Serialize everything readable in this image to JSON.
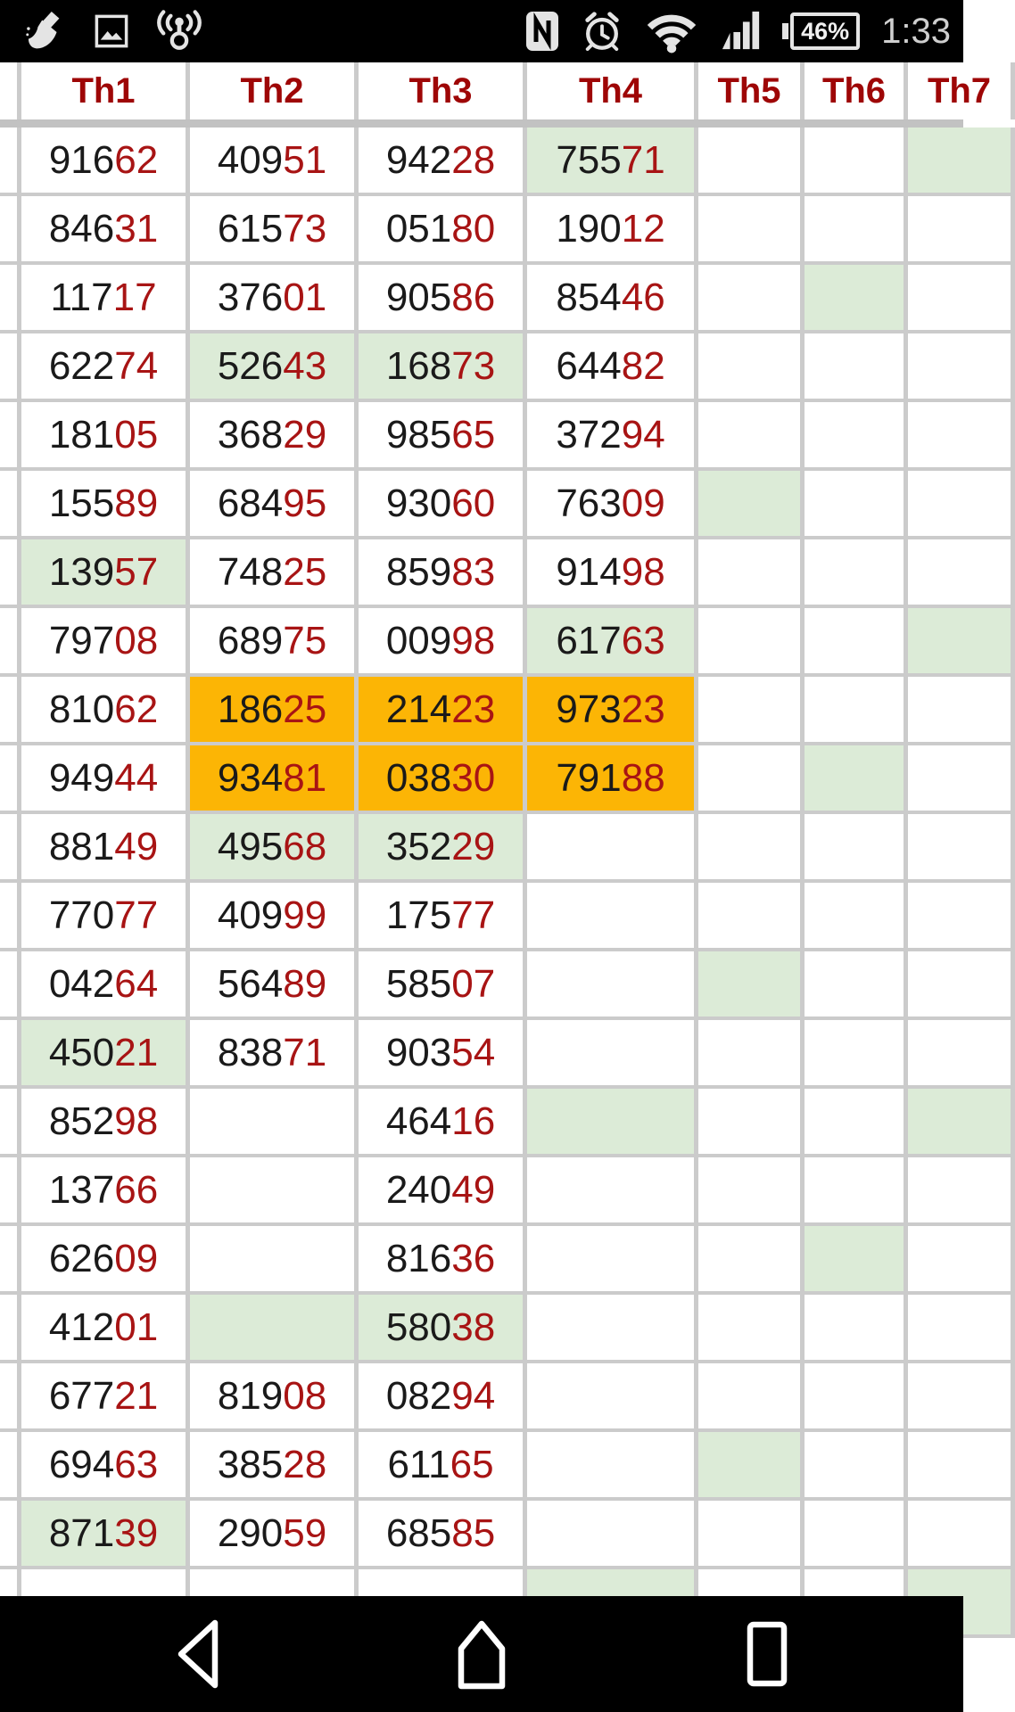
{
  "status_bar": {
    "battery_percent": "46%",
    "time": "1:33",
    "icons": [
      "broom-icon",
      "gallery-icon",
      "hotspot-icon",
      "nfc-icon",
      "alarm-clock-icon",
      "wifi-icon",
      "cell-signal-icon",
      "battery-icon"
    ]
  },
  "table": {
    "headers": [
      "Th1",
      "Th2",
      "Th3",
      "Th4",
      "Th5",
      "Th6",
      "Th7"
    ],
    "digit_colors": {
      "black_prefix_len": 3,
      "red_suffix_len": 2
    },
    "rows": [
      [
        {
          "v": "91662"
        },
        {
          "v": "40951"
        },
        {
          "v": "94228"
        },
        {
          "v": "75571",
          "bg": "green"
        },
        {},
        {},
        {
          "bg": "green"
        }
      ],
      [
        {
          "v": "84631"
        },
        {
          "v": "61573"
        },
        {
          "v": "05180"
        },
        {
          "v": "19012"
        },
        {},
        {},
        {}
      ],
      [
        {
          "v": "11717"
        },
        {
          "v": "37601"
        },
        {
          "v": "90586"
        },
        {
          "v": "85446"
        },
        {},
        {
          "bg": "green"
        },
        {}
      ],
      [
        {
          "v": "62274"
        },
        {
          "v": "52643",
          "bg": "green"
        },
        {
          "v": "16873",
          "bg": "green"
        },
        {
          "v": "64482"
        },
        {},
        {},
        {}
      ],
      [
        {
          "v": "18105"
        },
        {
          "v": "36829"
        },
        {
          "v": "98565"
        },
        {
          "v": "37294"
        },
        {},
        {},
        {}
      ],
      [
        {
          "v": "15589"
        },
        {
          "v": "68495"
        },
        {
          "v": "93060"
        },
        {
          "v": "76309"
        },
        {
          "bg": "green"
        },
        {},
        {}
      ],
      [
        {
          "v": "13957",
          "bg": "green"
        },
        {
          "v": "74825"
        },
        {
          "v": "85983"
        },
        {
          "v": "91498"
        },
        {},
        {},
        {}
      ],
      [
        {
          "v": "79708"
        },
        {
          "v": "68975"
        },
        {
          "v": "00998"
        },
        {
          "v": "61763",
          "bg": "green"
        },
        {},
        {},
        {
          "bg": "green"
        }
      ],
      [
        {
          "v": "81062"
        },
        {
          "v": "18625",
          "bg": "orange"
        },
        {
          "v": "21423",
          "bg": "orange"
        },
        {
          "v": "97323",
          "bg": "orange"
        },
        {},
        {},
        {}
      ],
      [
        {
          "v": "94944"
        },
        {
          "v": "93481",
          "bg": "orange"
        },
        {
          "v": "03830",
          "bg": "orange"
        },
        {
          "v": "79188",
          "bg": "orange"
        },
        {},
        {
          "bg": "green"
        },
        {}
      ],
      [
        {
          "v": "88149"
        },
        {
          "v": "49568",
          "bg": "green"
        },
        {
          "v": "35229",
          "bg": "green"
        },
        {},
        {},
        {},
        {}
      ],
      [
        {
          "v": "77077"
        },
        {
          "v": "40999"
        },
        {
          "v": "17577"
        },
        {},
        {},
        {},
        {}
      ],
      [
        {
          "v": "04264"
        },
        {
          "v": "56489"
        },
        {
          "v": "58507"
        },
        {},
        {
          "bg": "green"
        },
        {},
        {}
      ],
      [
        {
          "v": "45021",
          "bg": "green"
        },
        {
          "v": "83871"
        },
        {
          "v": "90354"
        },
        {},
        {},
        {},
        {}
      ],
      [
        {
          "v": "85298"
        },
        {},
        {
          "v": "46416"
        },
        {
          "bg": "green"
        },
        {},
        {},
        {
          "bg": "green"
        }
      ],
      [
        {
          "v": "13766"
        },
        {},
        {
          "v": "24049"
        },
        {},
        {},
        {},
        {}
      ],
      [
        {
          "v": "62609"
        },
        {},
        {
          "v": "81636"
        },
        {},
        {},
        {
          "bg": "green"
        },
        {}
      ],
      [
        {
          "v": "41201"
        },
        {
          "bg": "green"
        },
        {
          "v": "58038",
          "bg": "green"
        },
        {},
        {},
        {},
        {}
      ],
      [
        {
          "v": "67721"
        },
        {
          "v": "81908"
        },
        {
          "v": "08294"
        },
        {},
        {},
        {},
        {}
      ],
      [
        {
          "v": "69463"
        },
        {
          "v": "38528"
        },
        {
          "v": "61165"
        },
        {},
        {
          "bg": "green"
        },
        {},
        {}
      ],
      [
        {
          "v": "87139",
          "bg": "green"
        },
        {
          "v": "29059"
        },
        {
          "v": "68585"
        },
        {},
        {},
        {},
        {}
      ],
      [
        {},
        {},
        {},
        {
          "bg": "green"
        },
        {},
        {},
        {
          "bg": "green"
        }
      ]
    ]
  },
  "nav_bar": {
    "buttons": [
      "back",
      "home",
      "recents"
    ]
  },
  "colors": {
    "header_text": "#9e0606",
    "digit_black": "#1a1a1a",
    "digit_red": "#a81414",
    "green_cell": "#dcebd7",
    "orange_cell": "#fcb505",
    "grid_border": "#cbcbcb",
    "statusbar_bg": "#000000",
    "icon_gray": "#e4e4e4"
  }
}
